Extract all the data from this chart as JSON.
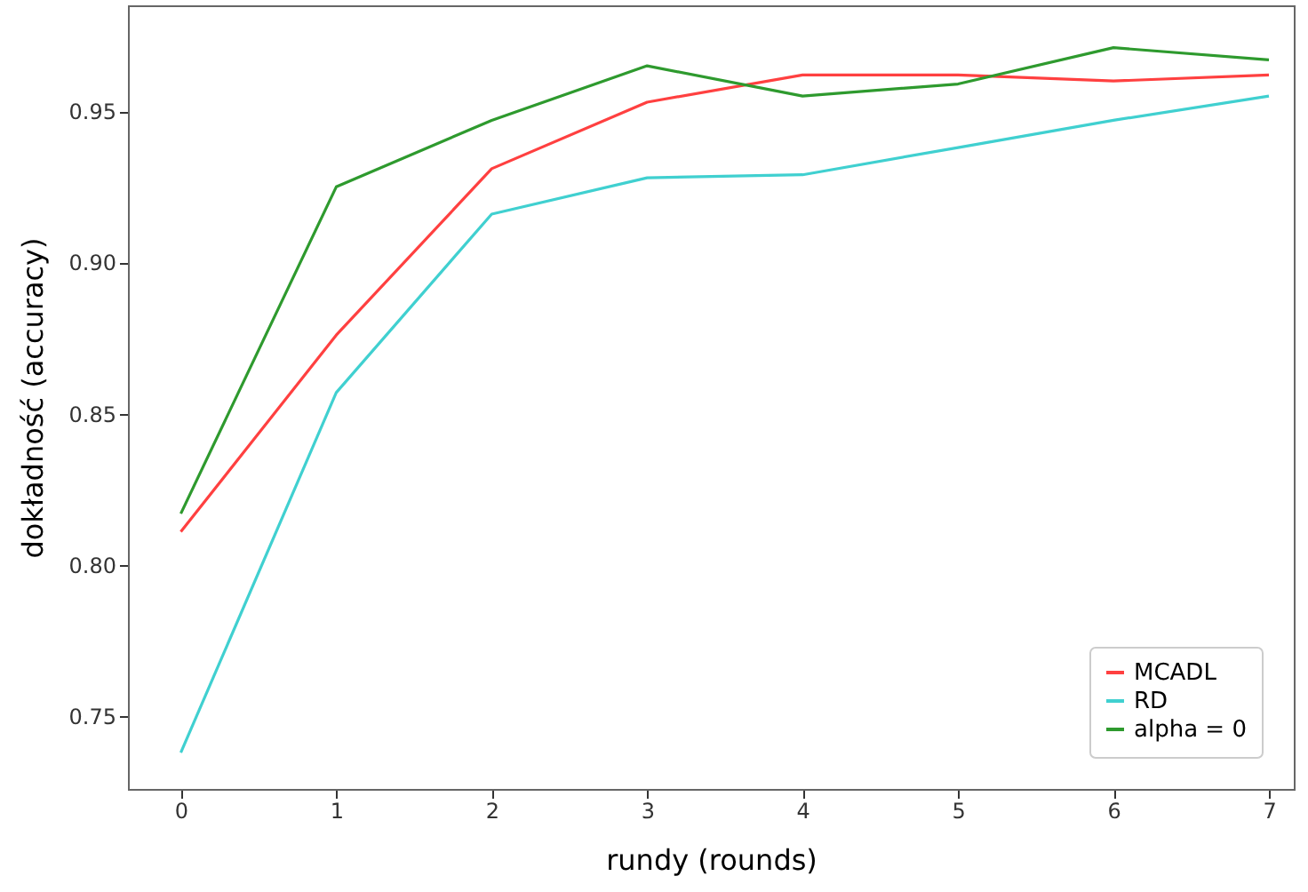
{
  "chart_data": {
    "type": "line",
    "xlabel": "rundy (rounds)",
    "ylabel": "dokładność (accuracy)",
    "x": [
      0,
      1,
      2,
      3,
      4,
      5,
      6,
      7
    ],
    "series": [
      {
        "name": "MCADL",
        "color": "#ff4040",
        "values": [
          0.811,
          0.876,
          0.931,
          0.953,
          0.962,
          0.962,
          0.96,
          0.962
        ]
      },
      {
        "name": "RD",
        "color": "#40d0d0",
        "values": [
          0.738,
          0.857,
          0.916,
          0.928,
          0.929,
          0.938,
          0.947,
          0.955
        ]
      },
      {
        "name": "alpha = 0",
        "color": "#2e9a2e",
        "values": [
          0.817,
          0.925,
          0.947,
          0.965,
          0.955,
          0.959,
          0.971,
          0.967
        ]
      }
    ],
    "xlim": [
      -0.34,
      7.16
    ],
    "xticks": [
      0,
      1,
      2,
      3,
      4,
      5,
      6,
      7
    ],
    "ylim": [
      0.726,
      0.985
    ],
    "yticks": [
      0.75,
      {
        "value": 0.8,
        "label": "0.80"
      },
      0.85,
      {
        "value": 0.9,
        "label": "0.90"
      },
      0.95
    ],
    "grid": false,
    "legend": "bottom right",
    "marker": "none",
    "line_style": "solid"
  }
}
